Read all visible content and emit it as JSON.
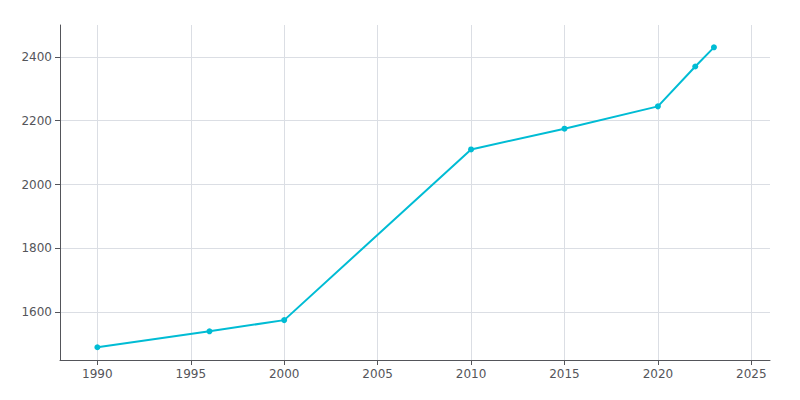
{
  "chart_data": {
    "type": "line",
    "x": [
      1990,
      1996,
      2000,
      2010,
      2015,
      2020,
      2022,
      2023
    ],
    "values": [
      1490,
      1540,
      1575,
      2110,
      2175,
      2245,
      2370,
      2430
    ],
    "color": "#00bcd4",
    "marker": "circle",
    "xlim": [
      1988,
      2026
    ],
    "ylim": [
      1450,
      2500
    ],
    "xticks": [
      1990,
      1995,
      2000,
      2005,
      2010,
      2015,
      2020,
      2025
    ],
    "yticks": [
      1600,
      1800,
      2000,
      2200,
      2400
    ],
    "grid": true
  }
}
